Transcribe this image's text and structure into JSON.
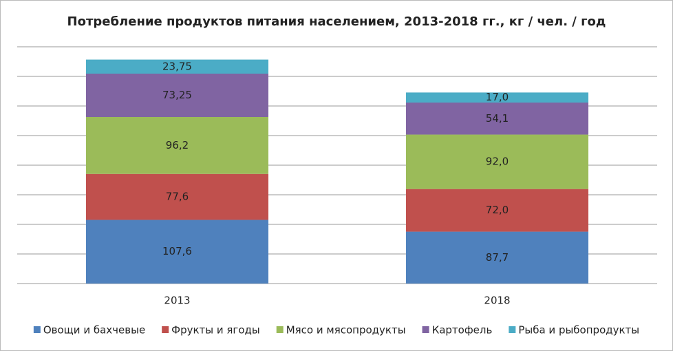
{
  "chart_data": {
    "type": "stacked_bar",
    "title": "Потребление продуктов питания населением, 2013-2018 гг., кг / чел. / год",
    "categories": [
      "2013",
      "2018"
    ],
    "series": [
      {
        "name": "Овощи и бахчевые",
        "color": "#4f81bd",
        "values": [
          107.6,
          87.7
        ],
        "value_labels": [
          "107,6",
          "87,7"
        ]
      },
      {
        "name": "Фрукты и ягоды",
        "color": "#c0504d",
        "values": [
          77.6,
          72.0
        ],
        "value_labels": [
          "77,6",
          "72,0"
        ]
      },
      {
        "name": "Мясо и мясопродукты",
        "color": "#9bbb59",
        "values": [
          96.2,
          92.0
        ],
        "value_labels": [
          "96,2",
          "92,0"
        ]
      },
      {
        "name": "Картофель",
        "color": "#8064a2",
        "values": [
          73.25,
          54.1
        ],
        "value_labels": [
          "73,25",
          "54,1"
        ]
      },
      {
        "name": "Рыба и рыбопродукты",
        "color": "#4bacc6",
        "values": [
          23.75,
          17.0
        ],
        "value_labels": [
          "23,75",
          "17,0"
        ]
      }
    ],
    "ylim": [
      0,
      400
    ],
    "yticks": [
      0,
      50,
      100,
      150,
      200,
      250,
      300,
      350,
      400
    ],
    "grid": true,
    "tick_labels": false,
    "legend": "bottom"
  }
}
